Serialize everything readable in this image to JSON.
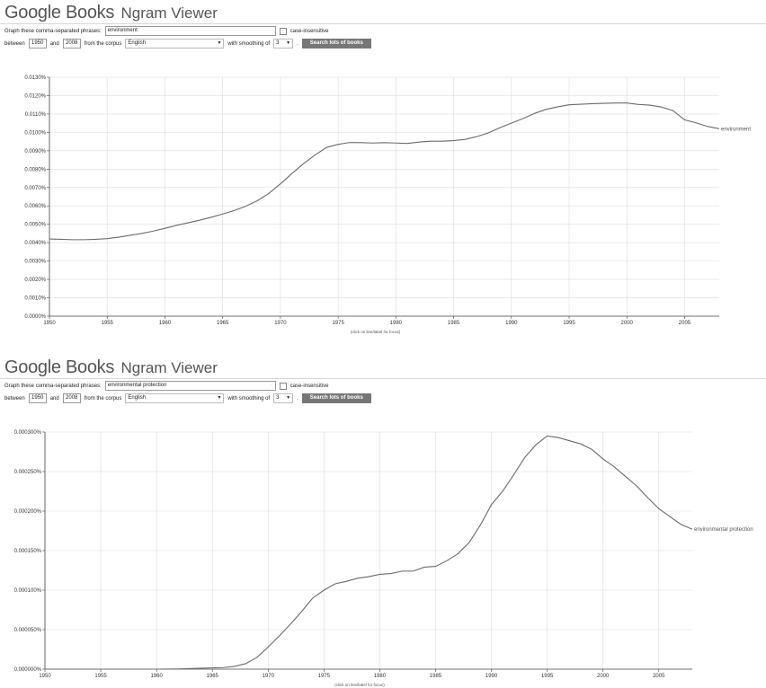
{
  "panels": [
    {
      "logo": {
        "google": "Google",
        "books": "Books"
      },
      "app_name": "Ngram Viewer",
      "form": {
        "phrases_label": "Graph these comma-separated phrases:",
        "phrases_value": "environment",
        "case_insensitive_label": "case-insensitive",
        "between_label": "between",
        "start_year": "1950",
        "and_label": "and",
        "end_year": "2008",
        "corpus_label": "from the corpus",
        "corpus_value": "English",
        "smoothing_label": "with smoothing of",
        "smoothing_value": "3",
        "search_button": "Search lots of books"
      },
      "chart_note": "(click on line/label for focus)"
    },
    {
      "logo": {
        "google": "Google",
        "books": "Books"
      },
      "app_name": "Ngram Viewer",
      "form": {
        "phrases_label": "Graph these comma-separated phrases:",
        "phrases_value": "environmental protection",
        "case_insensitive_label": "case-insensitive",
        "between_label": "between",
        "start_year": "1950",
        "and_label": "and",
        "end_year": "2008",
        "corpus_label": "from the corpus",
        "corpus_value": "English",
        "smoothing_label": "with smoothing of",
        "smoothing_value": "3",
        "search_button": "Search lots of books"
      },
      "chart_note": "(click on line/label for focus)"
    }
  ],
  "colors": {
    "line": "#6b6b6b",
    "grid": "#dddddd",
    "axis": "#444444",
    "button": "#777777"
  },
  "chart_data": [
    {
      "type": "line",
      "xlim": [
        1950,
        2008
      ],
      "ylim": [
        0,
        0.013
      ],
      "x_ticks": [
        1950,
        1955,
        1960,
        1965,
        1970,
        1975,
        1980,
        1985,
        1990,
        1995,
        2000,
        2005
      ],
      "y_ticks": [
        0,
        0.001,
        0.002,
        0.003,
        0.004,
        0.005,
        0.006,
        0.007,
        0.008,
        0.009,
        0.01,
        0.011,
        0.012,
        0.013
      ],
      "y_tick_labels": [
        "0.0000%",
        "0.0010%",
        "0.0020%",
        "0.0030%",
        "0.0040%",
        "0.0050%",
        "0.0060%",
        "0.0070%",
        "0.0080%",
        "0.0090%",
        "0.0100%",
        "0.0110%",
        "0.0120%",
        "0.0130%"
      ],
      "grid": true,
      "series": [
        {
          "name": "environment",
          "x": [
            1950,
            1951,
            1952,
            1953,
            1954,
            1955,
            1956,
            1957,
            1958,
            1959,
            1960,
            1961,
            1962,
            1963,
            1964,
            1965,
            1966,
            1967,
            1968,
            1969,
            1970,
            1971,
            1972,
            1973,
            1974,
            1975,
            1976,
            1977,
            1978,
            1979,
            1980,
            1981,
            1982,
            1983,
            1984,
            1985,
            1986,
            1987,
            1988,
            1989,
            1990,
            1991,
            1992,
            1993,
            1994,
            1995,
            1996,
            1997,
            1998,
            1999,
            2000,
            2001,
            2002,
            2003,
            2004,
            2005,
            2006,
            2007,
            2008
          ],
          "values": [
            0.0042,
            0.00418,
            0.00416,
            0.00416,
            0.00418,
            0.00422,
            0.0043,
            0.0044,
            0.0045,
            0.00463,
            0.00478,
            0.00494,
            0.00508,
            0.00522,
            0.00538,
            0.00556,
            0.00575,
            0.00598,
            0.00628,
            0.00668,
            0.0072,
            0.00776,
            0.0083,
            0.00877,
            0.00918,
            0.00935,
            0.00945,
            0.00944,
            0.00942,
            0.00944,
            0.00942,
            0.0094,
            0.00947,
            0.00952,
            0.00952,
            0.00955,
            0.00962,
            0.00977,
            0.00997,
            0.01025,
            0.0105,
            0.01075,
            0.01103,
            0.01125,
            0.01139,
            0.0115,
            0.01153,
            0.01156,
            0.01158,
            0.0116,
            0.0116,
            0.01152,
            0.01148,
            0.01138,
            0.01118,
            0.01068,
            0.01052,
            0.01032,
            0.0102
          ]
        }
      ]
    },
    {
      "type": "line",
      "xlim": [
        1950,
        2008
      ],
      "ylim": [
        0,
        0.0003
      ],
      "x_ticks": [
        1950,
        1955,
        1960,
        1965,
        1970,
        1975,
        1980,
        1985,
        1990,
        1995,
        2000,
        2005
      ],
      "y_ticks": [
        0,
        5e-05,
        0.0001,
        0.00015,
        0.0002,
        0.00025,
        0.0003
      ],
      "y_tick_labels": [
        "0.000000%",
        "0.000050%",
        "0.000100%",
        "0.000150%",
        "0.000200%",
        "0.000250%",
        "0.000300%"
      ],
      "grid": true,
      "series": [
        {
          "name": "environmental protection",
          "x": [
            1950,
            1955,
            1960,
            1962,
            1964,
            1966,
            1967,
            1968,
            1969,
            1970,
            1971,
            1972,
            1973,
            1974,
            1975,
            1976,
            1977,
            1978,
            1979,
            1980,
            1981,
            1982,
            1983,
            1984,
            1985,
            1986,
            1987,
            1988,
            1989,
            1990,
            1991,
            1992,
            1993,
            1994,
            1995,
            1996,
            1997,
            1998,
            1999,
            2000,
            2001,
            2002,
            2003,
            2004,
            2005,
            2006,
            2007,
            2008
          ],
          "values": [
            0,
            0,
            0,
            3e-07,
            1.2e-06,
            2e-06,
            3.5e-06,
            7e-06,
            1.5e-05,
            2.8e-05,
            4.2e-05,
            5.7e-05,
            7.3e-05,
            9e-05,
            0.0001,
            0.000108,
            0.000111,
            0.000115,
            0.000117,
            0.00012,
            0.000121,
            0.000124,
            0.000124,
            0.000129,
            0.00013,
            0.000137,
            0.000146,
            0.00016,
            0.000182,
            0.000208,
            0.000225,
            0.000246,
            0.000268,
            0.000284,
            0.000295,
            0.000293,
            0.000289,
            0.000285,
            0.000278,
            0.000266,
            0.000256,
            0.000244,
            0.000232,
            0.000217,
            0.000203,
            0.000193,
            0.000183,
            0.000177
          ]
        }
      ]
    }
  ]
}
